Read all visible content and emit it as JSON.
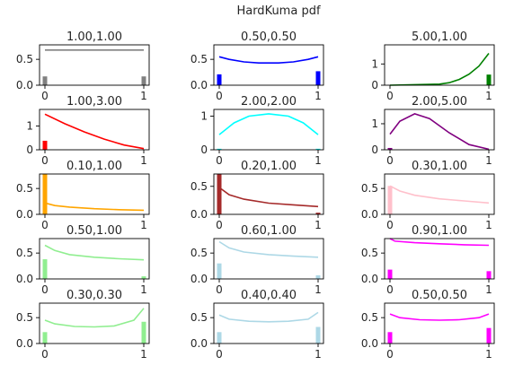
{
  "figure": {
    "title": "HardKuma pdf"
  },
  "chart_data": [
    {
      "type": "line",
      "title": "1.00,1.00",
      "color": "#808080",
      "ylim": [
        0,
        0.78
      ],
      "yticks": [
        "0.0",
        "0.5"
      ],
      "xticks": [
        "0",
        "1"
      ],
      "x": [
        0,
        0.25,
        0.5,
        0.75,
        1
      ],
      "y": [
        0.68,
        0.68,
        0.68,
        0.68,
        0.68
      ],
      "bars": [
        {
          "x": 0,
          "value": 0.17
        },
        {
          "x": 1,
          "value": 0.17
        }
      ]
    },
    {
      "type": "line",
      "title": "0.50,0.50",
      "color": "#0000ff",
      "ylim": [
        0,
        0.78
      ],
      "yticks": [
        "0.0",
        "0.5"
      ],
      "xticks": [
        "0",
        "1"
      ],
      "x": [
        0,
        0.1,
        0.25,
        0.4,
        0.5,
        0.6,
        0.75,
        0.9,
        1
      ],
      "y": [
        0.55,
        0.5,
        0.45,
        0.43,
        0.43,
        0.43,
        0.45,
        0.5,
        0.55
      ],
      "bars": [
        {
          "x": 0,
          "value": 0.21
        },
        {
          "x": 1,
          "value": 0.27
        }
      ]
    },
    {
      "type": "line",
      "title": "5.00,1.00",
      "color": "#008000",
      "ylim": [
        0,
        1.9
      ],
      "yticks": [
        "0",
        "1"
      ],
      "xticks": [
        "0",
        "1"
      ],
      "x": [
        0,
        0.5,
        0.6,
        0.7,
        0.8,
        0.9,
        1
      ],
      "y": [
        0,
        0.05,
        0.12,
        0.27,
        0.52,
        0.9,
        1.5
      ],
      "bars": [
        {
          "x": 0,
          "value": 0
        },
        {
          "x": 1,
          "value": 0.5
        }
      ]
    },
    {
      "type": "line",
      "title": "1.00,3.00",
      "color": "#ff0000",
      "ylim": [
        0,
        1.7
      ],
      "yticks": [
        "0",
        "1"
      ],
      "xticks": [
        "0",
        "1"
      ],
      "x": [
        0,
        0.2,
        0.4,
        0.6,
        0.8,
        1
      ],
      "y": [
        1.5,
        1.1,
        0.75,
        0.45,
        0.2,
        0.05
      ],
      "bars": [
        {
          "x": 0,
          "value": 0.38
        },
        {
          "x": 1,
          "value": 0
        }
      ]
    },
    {
      "type": "line",
      "title": "2.00,2.00",
      "color": "#00ffff",
      "ylim": [
        0,
        1.2
      ],
      "yticks": [
        "0",
        "1"
      ],
      "xticks": [
        "0",
        "1"
      ],
      "x": [
        0,
        0.15,
        0.3,
        0.5,
        0.7,
        0.85,
        1
      ],
      "y": [
        0.45,
        0.8,
        1.0,
        1.07,
        1.0,
        0.8,
        0.45
      ],
      "bars": [
        {
          "x": 0,
          "value": 0.03
        },
        {
          "x": 1,
          "value": 0.03
        }
      ]
    },
    {
      "type": "line",
      "title": "2.00,5.00",
      "color": "#800080",
      "ylim": [
        0,
        1.55
      ],
      "yticks": [
        "0",
        "1"
      ],
      "xticks": [
        "0",
        "1"
      ],
      "x": [
        0,
        0.1,
        0.25,
        0.4,
        0.6,
        0.8,
        1
      ],
      "y": [
        0.6,
        1.1,
        1.38,
        1.2,
        0.65,
        0.2,
        0.02
      ],
      "bars": [
        {
          "x": 0,
          "value": 0.07
        },
        {
          "x": 1,
          "value": 0
        }
      ]
    },
    {
      "type": "line",
      "title": "0.10,1.00",
      "color": "#ffa500",
      "ylim": [
        0,
        0.78
      ],
      "yticks": [
        "0.0",
        "0.5"
      ],
      "xticks": [
        "0",
        "1"
      ],
      "x": [
        0,
        0.1,
        0.25,
        0.5,
        0.75,
        1
      ],
      "y": [
        0.22,
        0.17,
        0.14,
        0.11,
        0.09,
        0.08
      ],
      "bars": [
        {
          "x": 0,
          "value": 0.78
        },
        {
          "x": 1,
          "value": 0
        }
      ]
    },
    {
      "type": "line",
      "title": "0.20,1.00",
      "color": "#a52a2a",
      "ylim": [
        0,
        0.72
      ],
      "yticks": [
        "0.0",
        "0.5"
      ],
      "xticks": [
        "0",
        "1"
      ],
      "x": [
        0,
        0.1,
        0.25,
        0.5,
        0.75,
        1
      ],
      "y": [
        0.48,
        0.35,
        0.27,
        0.2,
        0.17,
        0.14
      ],
      "bars": [
        {
          "x": 0,
          "value": 0.72
        },
        {
          "x": 1,
          "value": 0.03
        }
      ]
    },
    {
      "type": "line",
      "title": "0.30,1.00",
      "color": "#ffc0cb",
      "ylim": [
        0,
        0.78
      ],
      "yticks": [
        "0.0",
        "0.5"
      ],
      "xticks": [
        "0",
        "1"
      ],
      "x": [
        0,
        0.1,
        0.25,
        0.5,
        0.75,
        1
      ],
      "y": [
        0.55,
        0.45,
        0.37,
        0.3,
        0.26,
        0.22
      ],
      "bars": [
        {
          "x": 0,
          "value": 0.55
        },
        {
          "x": 1,
          "value": 0
        }
      ]
    },
    {
      "type": "line",
      "title": "0.50,1.00",
      "color": "#90ee90",
      "ylim": [
        0,
        0.78
      ],
      "yticks": [
        "0.0",
        "0.5"
      ],
      "xticks": [
        "0",
        "1"
      ],
      "x": [
        0,
        0.1,
        0.25,
        0.5,
        0.75,
        1
      ],
      "y": [
        0.65,
        0.55,
        0.47,
        0.42,
        0.39,
        0.37
      ],
      "bars": [
        {
          "x": 0,
          "value": 0.38
        },
        {
          "x": 1,
          "value": 0.05
        }
      ]
    },
    {
      "type": "line",
      "title": "0.60,1.00",
      "color": "#add8e6",
      "ylim": [
        0,
        0.78
      ],
      "yticks": [
        "0.0",
        "0.5"
      ],
      "xticks": [
        "0",
        "1"
      ],
      "x": [
        0,
        0.1,
        0.25,
        0.5,
        0.75,
        1
      ],
      "y": [
        0.72,
        0.6,
        0.52,
        0.47,
        0.44,
        0.42
      ],
      "bars": [
        {
          "x": 0,
          "value": 0.3
        },
        {
          "x": 1,
          "value": 0.07
        }
      ]
    },
    {
      "type": "line",
      "title": "0.90,1.00",
      "color": "#ff00ff",
      "ylim": [
        0,
        0.78
      ],
      "yticks": [
        "0.0",
        "0.5"
      ],
      "xticks": [
        "0",
        "1"
      ],
      "x": [
        0,
        0.05,
        0.25,
        0.5,
        0.75,
        1
      ],
      "y": [
        0.78,
        0.73,
        0.7,
        0.68,
        0.66,
        0.65
      ],
      "bars": [
        {
          "x": 0,
          "value": 0.18
        },
        {
          "x": 1,
          "value": 0.15
        }
      ]
    },
    {
      "type": "line",
      "title": "0.30,0.30",
      "color": "#90ee90",
      "ylim": [
        0,
        0.78
      ],
      "yticks": [
        "0.0",
        "0.5"
      ],
      "xticks": [
        "0",
        "1"
      ],
      "x": [
        0,
        0.1,
        0.3,
        0.5,
        0.7,
        0.9,
        1
      ],
      "y": [
        0.45,
        0.38,
        0.33,
        0.32,
        0.34,
        0.45,
        0.68
      ],
      "bars": [
        {
          "x": 0,
          "value": 0.22
        },
        {
          "x": 1,
          "value": 0.42
        }
      ]
    },
    {
      "type": "line",
      "title": "0.40,0.40",
      "color": "#add8e6",
      "ylim": [
        0,
        0.78
      ],
      "yticks": [
        "0.0",
        "0.5"
      ],
      "xticks": [
        "0",
        "1"
      ],
      "x": [
        0,
        0.1,
        0.3,
        0.5,
        0.7,
        0.9,
        1
      ],
      "y": [
        0.55,
        0.47,
        0.43,
        0.42,
        0.43,
        0.47,
        0.6
      ],
      "bars": [
        {
          "x": 0,
          "value": 0.22
        },
        {
          "x": 1,
          "value": 0.32
        }
      ]
    },
    {
      "type": "line",
      "title": "0.50,0.50",
      "color": "#ff00ff",
      "ylim": [
        0,
        0.78
      ],
      "yticks": [
        "0.0",
        "0.5"
      ],
      "xticks": [
        "0",
        "1"
      ],
      "x": [
        0,
        0.1,
        0.3,
        0.5,
        0.7,
        0.9,
        1
      ],
      "y": [
        0.57,
        0.5,
        0.46,
        0.45,
        0.46,
        0.5,
        0.57
      ],
      "bars": [
        {
          "x": 0,
          "value": 0.22
        },
        {
          "x": 1,
          "value": 0.3
        }
      ]
    }
  ]
}
